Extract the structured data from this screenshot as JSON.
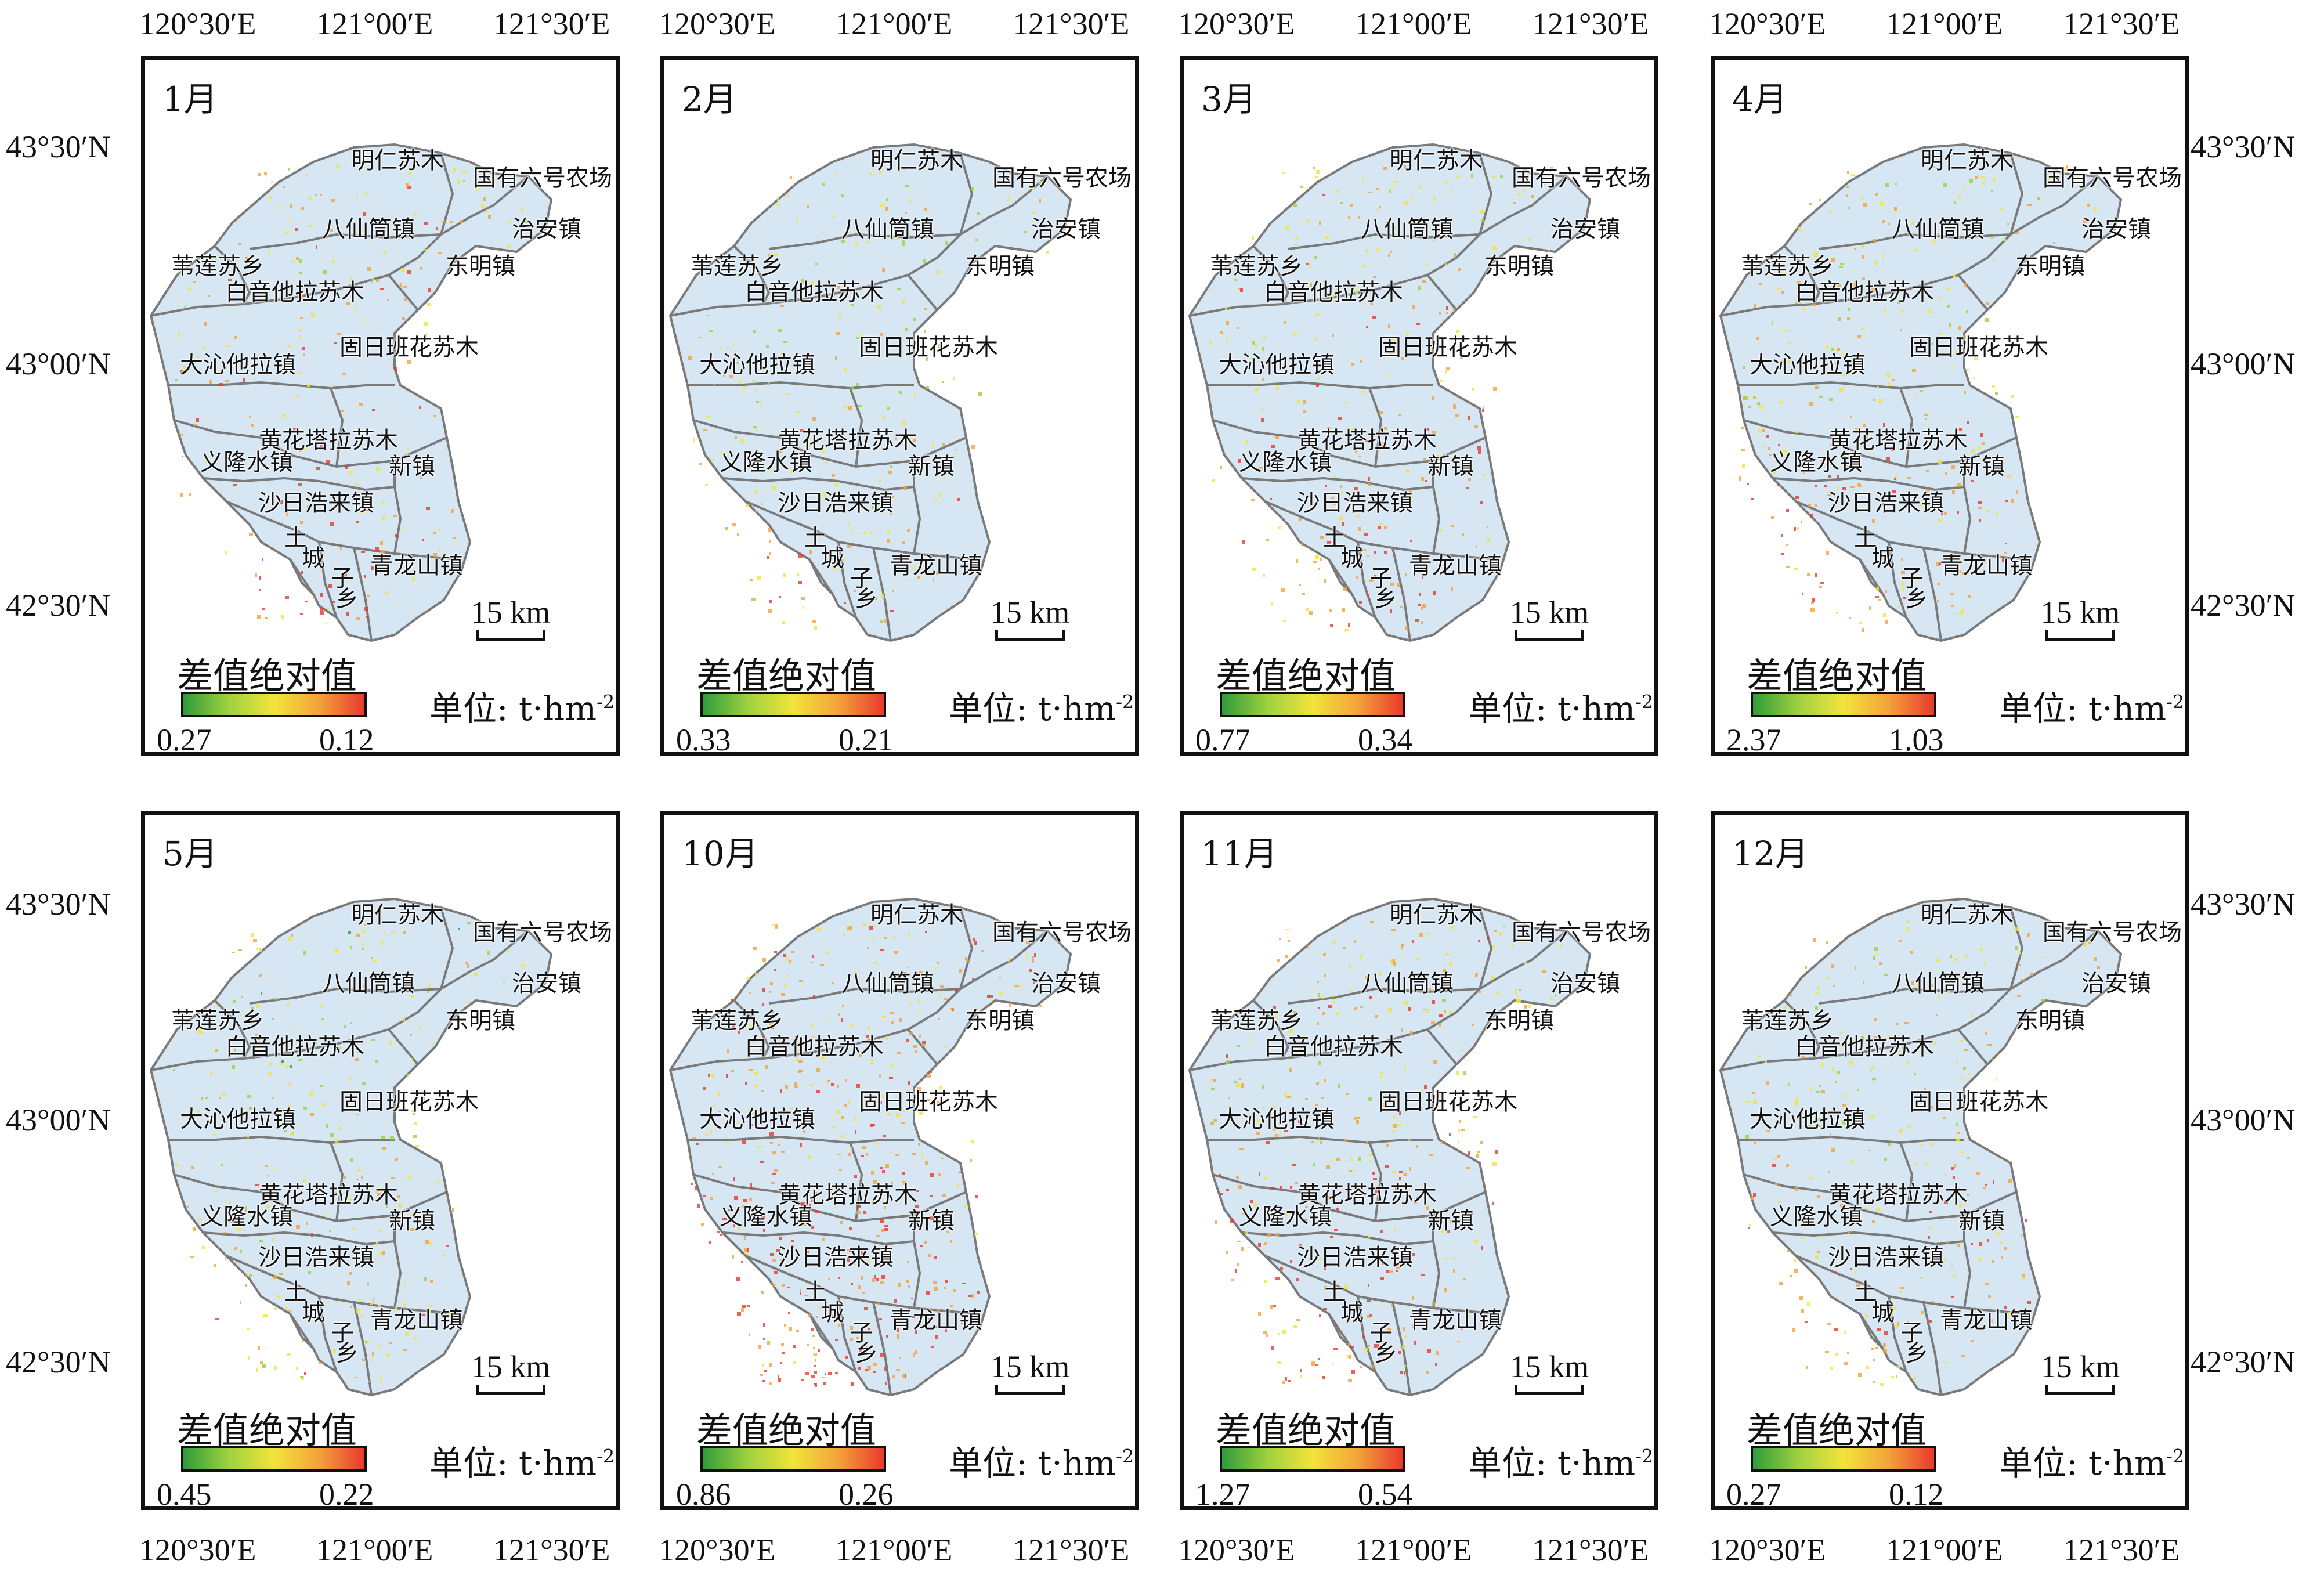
{
  "axes": {
    "lon": [
      "120°30′E",
      "121°00′E",
      "121°30′E"
    ],
    "lat": [
      "43°30′N",
      "43°00′N",
      "42°30′N"
    ]
  },
  "towns": {
    "t1": "明仁苏木",
    "t2": "国有六号农场",
    "t3": "八仙筒镇",
    "t4": "治安镇",
    "t5": "苇莲苏乡",
    "t6": "东明镇",
    "t7": "白音他拉苏木",
    "t8": "大沁他拉镇",
    "t9": "固日班花苏木",
    "t10": "黄花塔拉苏木",
    "t11": "义隆水镇",
    "t12": "新镇",
    "t13": "沙日浩来镇",
    "t14a": "土",
    "t14b": "城",
    "t14c": "子",
    "t14d": "乡",
    "t15": "青龙山镇"
  },
  "scale_label": "15 km",
  "legend_title": "差值绝对值",
  "unit_text": "单位: t·hm",
  "unit_exp": "-2",
  "colors": {
    "ramp": [
      "#2f9b3a",
      "#9ed13f",
      "#f2e43a",
      "#f3a33a",
      "#e8392e"
    ],
    "county_fill": "#d6e6f3",
    "boundary": "#7a7a7a"
  },
  "panels": [
    {
      "month": "1月",
      "legend_min": "0.27",
      "legend_max": "0.12"
    },
    {
      "month": "2月",
      "legend_min": "0.33",
      "legend_max": "0.21"
    },
    {
      "month": "3月",
      "legend_min": "0.77",
      "legend_max": "0.34"
    },
    {
      "month": "4月",
      "legend_min": "2.37",
      "legend_max": "1.03"
    },
    {
      "month": "5月",
      "legend_min": "0.45",
      "legend_max": "0.22"
    },
    {
      "month": "10月",
      "legend_min": "0.86",
      "legend_max": "0.26"
    },
    {
      "month": "11月",
      "legend_min": "1.27",
      "legend_max": "0.54"
    },
    {
      "month": "12月",
      "legend_min": "0.27",
      "legend_max": "0.12"
    }
  ]
}
